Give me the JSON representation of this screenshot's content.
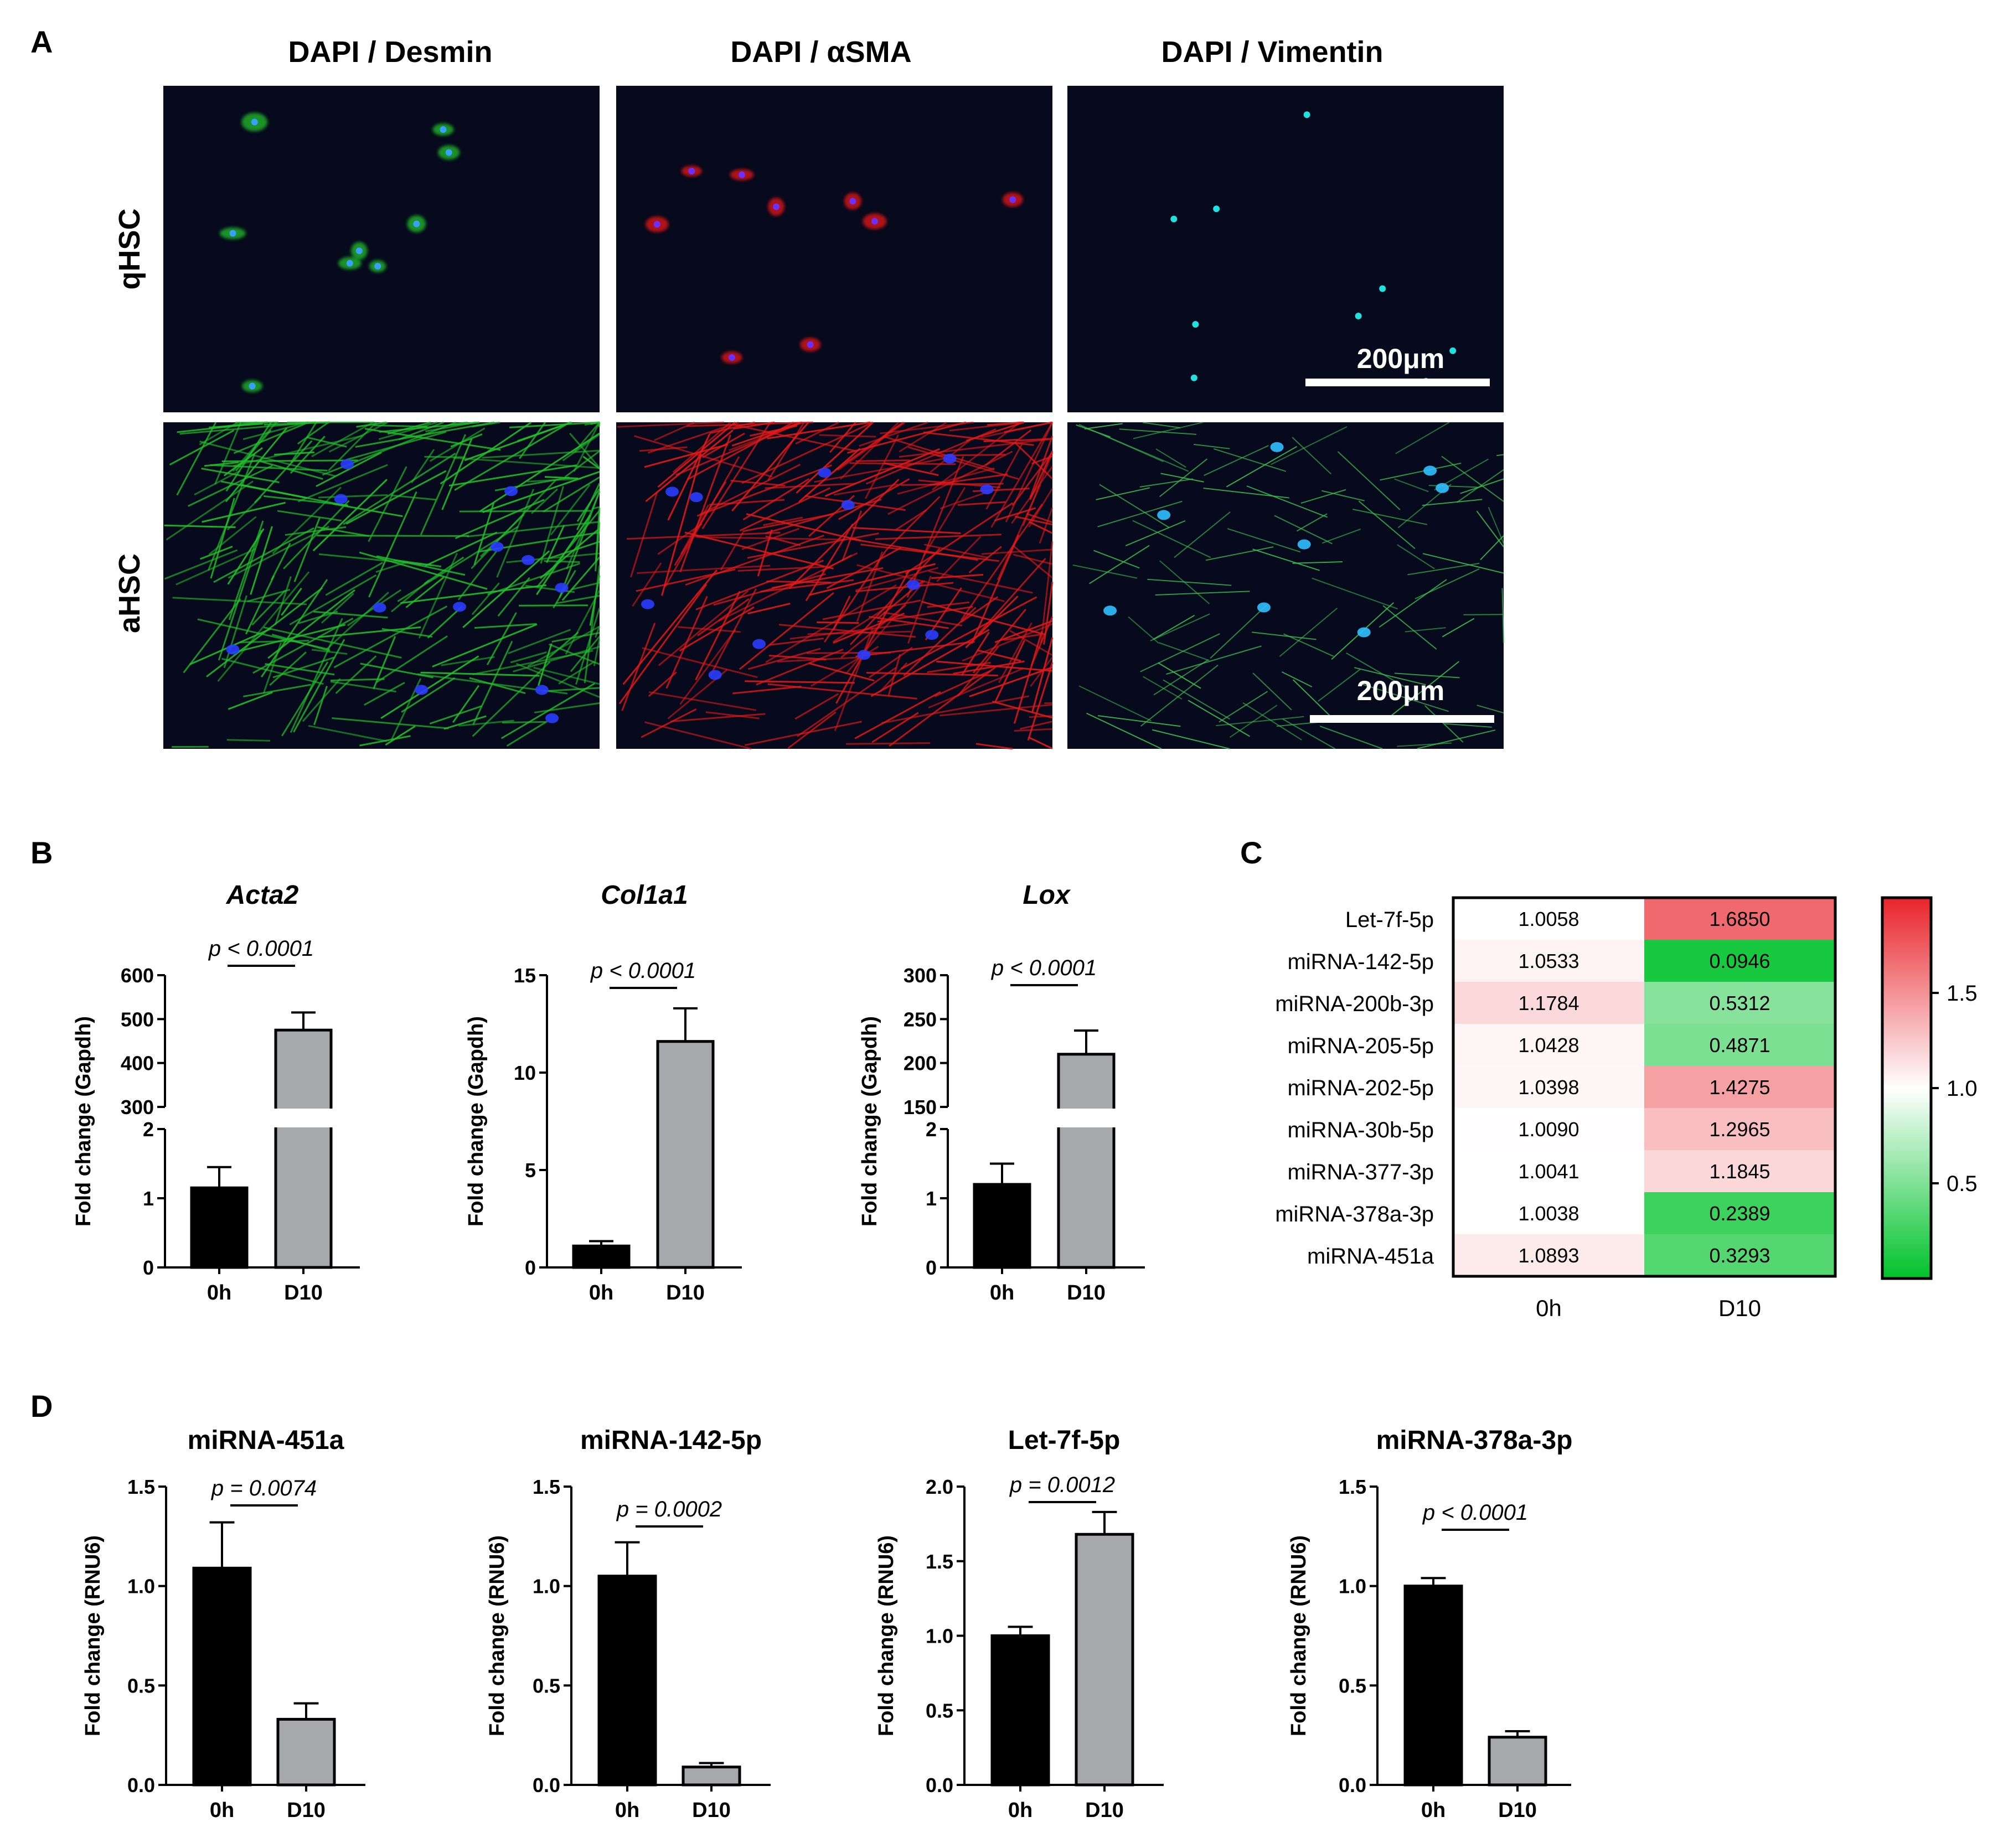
{
  "panels": {
    "A": {
      "label": "A",
      "columns": [
        "DAPI / Desmin",
        "DAPI / αSMA",
        "DAPI / Vimentin"
      ],
      "rows": [
        "qHSC",
        "aHSC"
      ],
      "scale_bar": "200μm",
      "colors": {
        "desmin": "#22c02a",
        "asma": "#e81818",
        "vimentin": "#3cc050",
        "dapi": "#2a3cff",
        "background": "#060a1c"
      }
    },
    "B": {
      "label": "B"
    },
    "C": {
      "label": "C"
    },
    "D": {
      "label": "D"
    }
  },
  "chart_data": [
    {
      "panel": "B",
      "type": "bar",
      "title": "Acta2",
      "ylabel": "Fold change (Gapdh)",
      "categories": [
        "0h",
        "D10"
      ],
      "values": [
        1.15,
        475
      ],
      "errors": [
        0.3,
        40
      ],
      "broken_axis": true,
      "lower_range": [
        0,
        2
      ],
      "lower_ticks": [
        "0",
        "1",
        "2"
      ],
      "upper_range": [
        300,
        600
      ],
      "upper_ticks": [
        "300",
        "400",
        "500",
        "600"
      ],
      "annotation": "p < 0.0001",
      "colors": [
        "#000000",
        "#a7a8ab"
      ]
    },
    {
      "panel": "B",
      "type": "bar",
      "title": "Col1a1",
      "ylabel": "Fold change (Gapdh)",
      "categories": [
        "0h",
        "D10"
      ],
      "values": [
        1.1,
        11.6
      ],
      "errors": [
        0.25,
        1.7
      ],
      "ylim": [
        0,
        15
      ],
      "ticks": [
        "0",
        "5",
        "10",
        "15"
      ],
      "annotation": "p < 0.0001",
      "colors": [
        "#000000",
        "#a7a8ab"
      ]
    },
    {
      "panel": "B",
      "type": "bar",
      "title": "Lox",
      "ylabel": "Fold change (Gapdh)",
      "categories": [
        "0h",
        "D10"
      ],
      "values": [
        1.2,
        210
      ],
      "errors": [
        0.3,
        27
      ],
      "broken_axis": true,
      "lower_range": [
        0,
        2
      ],
      "lower_ticks": [
        "0",
        "1",
        "2"
      ],
      "upper_range": [
        150,
        300
      ],
      "upper_ticks": [
        "150",
        "200",
        "250",
        "300"
      ],
      "annotation": "p < 0.0001",
      "colors": [
        "#000000",
        "#a7a8ab"
      ]
    },
    {
      "panel": "C",
      "type": "heatmap",
      "rows": [
        "Let-7f-5p",
        "miRNA-142-5p",
        "miRNA-200b-3p",
        "miRNA-205-5p",
        "miRNA-202-5p",
        "miRNA-30b-5p",
        "miRNA-377-3p",
        "miRNA-378a-3p",
        "miRNA-451a"
      ],
      "columns": [
        "0h",
        "D10"
      ],
      "values": [
        [
          1.0058,
          1.685
        ],
        [
          1.0533,
          0.0946
        ],
        [
          1.1784,
          0.5312
        ],
        [
          1.0428,
          0.4871
        ],
        [
          1.0398,
          1.4275
        ],
        [
          1.009,
          1.2965
        ],
        [
          1.0041,
          1.1845
        ],
        [
          1.0038,
          0.2389
        ],
        [
          1.0893,
          0.3293
        ]
      ],
      "labels": [
        [
          "1.0058",
          "1.6850"
        ],
        [
          "1.0533",
          "0.0946"
        ],
        [
          "1.1784",
          "0.5312"
        ],
        [
          "1.0428",
          "0.4871"
        ],
        [
          "1.0398",
          "1.4275"
        ],
        [
          "1.0090",
          "1.2965"
        ],
        [
          "1.0041",
          "1.1845"
        ],
        [
          "1.0038",
          "0.2389"
        ],
        [
          "1.0893",
          "0.3293"
        ]
      ],
      "colorbar_ticks": [
        "1.5",
        "1.0",
        "0.5"
      ],
      "colorbar_range": [
        0,
        2
      ],
      "colors": {
        "low": "#00c22b",
        "mid": "#ffffff",
        "high": "#e8242b"
      }
    },
    {
      "panel": "D",
      "type": "bar",
      "title": "miRNA-451a",
      "ylabel": "Fold change (RNU6)",
      "categories": [
        "0h",
        "D10"
      ],
      "values": [
        1.09,
        0.33
      ],
      "errors": [
        0.23,
        0.08
      ],
      "ylim": [
        0,
        1.5
      ],
      "ticks": [
        "0.0",
        "0.5",
        "1.0",
        "1.5"
      ],
      "annotation": "p = 0.0074",
      "colors": [
        "#000000",
        "#a7a8ab"
      ]
    },
    {
      "panel": "D",
      "type": "bar",
      "title": "miRNA-142-5p",
      "ylabel": "Fold change (RNU6)",
      "categories": [
        "0h",
        "D10"
      ],
      "values": [
        1.05,
        0.09
      ],
      "errors": [
        0.17,
        0.02
      ],
      "ylim": [
        0,
        1.5
      ],
      "ticks": [
        "0.0",
        "0.5",
        "1.0",
        "1.5"
      ],
      "annotation": "p = 0.0002",
      "colors": [
        "#000000",
        "#a7a8ab"
      ]
    },
    {
      "panel": "D",
      "type": "bar",
      "title": "Let-7f-5p",
      "ylabel": "Fold change (RNU6)",
      "categories": [
        "0h",
        "D10"
      ],
      "values": [
        1.0,
        1.68
      ],
      "errors": [
        0.06,
        0.15
      ],
      "ylim": [
        0,
        2.0
      ],
      "ticks": [
        "0.0",
        "0.5",
        "1.0",
        "1.5",
        "2.0"
      ],
      "annotation": "p = 0.0012",
      "colors": [
        "#000000",
        "#a7a8ab"
      ]
    },
    {
      "panel": "D",
      "type": "bar",
      "title": "miRNA-378a-3p",
      "ylabel": "Fold change (RNU6)",
      "categories": [
        "0h",
        "D10"
      ],
      "values": [
        1.0,
        0.24
      ],
      "errors": [
        0.04,
        0.03
      ],
      "ylim": [
        0,
        1.5
      ],
      "ticks": [
        "0.0",
        "0.5",
        "1.0",
        "1.5"
      ],
      "annotation": "p < 0.0001",
      "colors": [
        "#000000",
        "#a7a8ab"
      ]
    }
  ]
}
